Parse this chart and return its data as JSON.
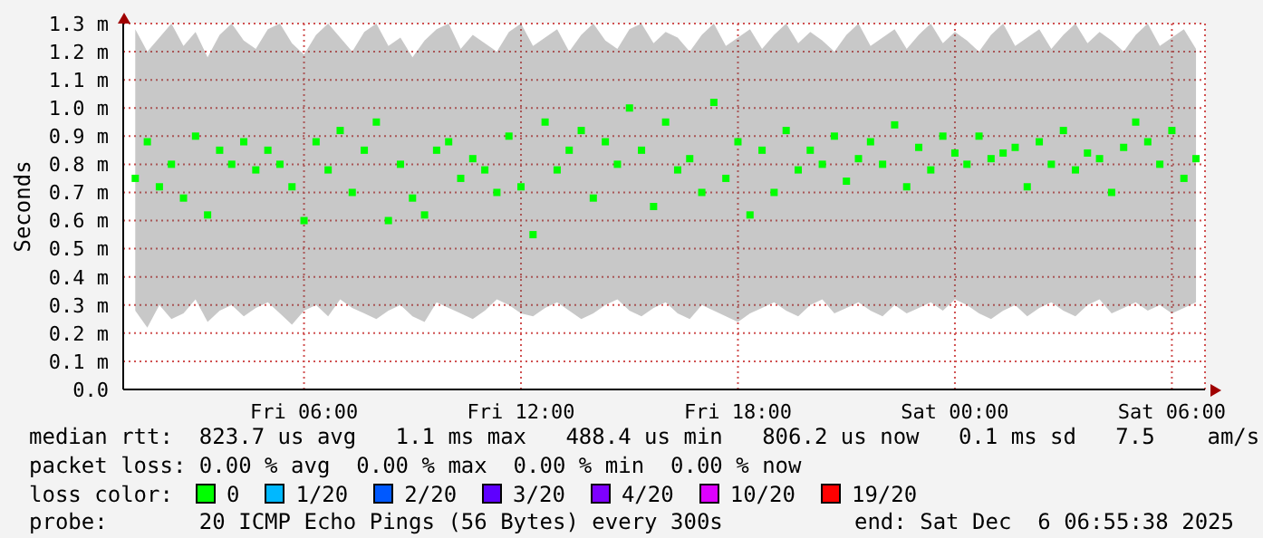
{
  "chart_data": {
    "type": "scatter",
    "ylabel": "Seconds",
    "xlim": [
      "2025-12-05T01:00",
      "2025-12-06T06:55"
    ],
    "xticks": [
      {
        "value": "2025-12-05T06:00",
        "label": "Fri 06:00"
      },
      {
        "value": "2025-12-05T12:00",
        "label": "Fri 12:00"
      },
      {
        "value": "2025-12-05T18:00",
        "label": "Fri 18:00"
      },
      {
        "value": "2025-12-06T00:00",
        "label": "Sat 00:00"
      },
      {
        "value": "2025-12-06T06:00",
        "label": "Sat 06:00"
      }
    ],
    "ylim": [
      0,
      1.3
    ],
    "yticks": [
      {
        "value": 0,
        "label": "0.0"
      },
      {
        "value": 0.1,
        "label": "0.1 m"
      },
      {
        "value": 0.2,
        "label": "0.2 m"
      },
      {
        "value": 0.3,
        "label": "0.3 m"
      },
      {
        "value": 0.4,
        "label": "0.4 m"
      },
      {
        "value": 0.5,
        "label": "0.5 m"
      },
      {
        "value": 0.6,
        "label": "0.6 m"
      },
      {
        "value": 0.7,
        "label": "0.7 m"
      },
      {
        "value": 0.8,
        "label": "0.8 m"
      },
      {
        "value": 0.9,
        "label": "0.9 m"
      },
      {
        "value": 1.0,
        "label": "1.0 m"
      },
      {
        "value": 1.1,
        "label": "1.1 m"
      },
      {
        "value": 1.2,
        "label": "1.2 m"
      },
      {
        "value": 1.3,
        "label": "1.3 m"
      }
    ],
    "grid": true,
    "marker": "square",
    "x": [
      "2025-12-05T01:20",
      "2025-12-05T01:40",
      "2025-12-05T02:00",
      "2025-12-05T02:20",
      "2025-12-05T02:40",
      "2025-12-05T03:00",
      "2025-12-05T03:20",
      "2025-12-05T03:40",
      "2025-12-05T04:00",
      "2025-12-05T04:20",
      "2025-12-05T04:40",
      "2025-12-05T05:00",
      "2025-12-05T05:20",
      "2025-12-05T05:40",
      "2025-12-05T06:00",
      "2025-12-05T06:20",
      "2025-12-05T06:40",
      "2025-12-05T07:00",
      "2025-12-05T07:20",
      "2025-12-05T07:40",
      "2025-12-05T08:00",
      "2025-12-05T08:20",
      "2025-12-05T08:40",
      "2025-12-05T09:00",
      "2025-12-05T09:20",
      "2025-12-05T09:40",
      "2025-12-05T10:00",
      "2025-12-05T10:20",
      "2025-12-05T10:40",
      "2025-12-05T11:00",
      "2025-12-05T11:20",
      "2025-12-05T11:40",
      "2025-12-05T12:00",
      "2025-12-05T12:20",
      "2025-12-05T12:40",
      "2025-12-05T13:00",
      "2025-12-05T13:20",
      "2025-12-05T13:40",
      "2025-12-05T14:00",
      "2025-12-05T14:20",
      "2025-12-05T14:40",
      "2025-12-05T15:00",
      "2025-12-05T15:20",
      "2025-12-05T15:40",
      "2025-12-05T16:00",
      "2025-12-05T16:20",
      "2025-12-05T16:40",
      "2025-12-05T17:00",
      "2025-12-05T17:20",
      "2025-12-05T17:40",
      "2025-12-05T18:00",
      "2025-12-05T18:20",
      "2025-12-05T18:40",
      "2025-12-05T19:00",
      "2025-12-05T19:20",
      "2025-12-05T19:40",
      "2025-12-05T20:00",
      "2025-12-05T20:20",
      "2025-12-05T20:40",
      "2025-12-05T21:00",
      "2025-12-05T21:20",
      "2025-12-05T21:40",
      "2025-12-05T22:00",
      "2025-12-05T22:20",
      "2025-12-05T22:40",
      "2025-12-05T23:00",
      "2025-12-05T23:20",
      "2025-12-05T23:40",
      "2025-12-06T00:00",
      "2025-12-06T00:20",
      "2025-12-06T00:40",
      "2025-12-06T01:00",
      "2025-12-06T01:20",
      "2025-12-06T01:40",
      "2025-12-06T02:00",
      "2025-12-06T02:20",
      "2025-12-06T02:40",
      "2025-12-06T03:00",
      "2025-12-06T03:20",
      "2025-12-06T03:40",
      "2025-12-06T04:00",
      "2025-12-06T04:20",
      "2025-12-06T04:40",
      "2025-12-06T05:00",
      "2025-12-06T05:20",
      "2025-12-06T05:40",
      "2025-12-06T06:00",
      "2025-12-06T06:20",
      "2025-12-06T06:40"
    ],
    "series": [
      {
        "color": "#00ff00",
        "values": [
          0.75,
          0.88,
          0.72,
          0.8,
          0.68,
          0.9,
          0.62,
          0.85,
          0.8,
          0.88,
          0.78,
          0.85,
          0.8,
          0.72,
          0.6,
          0.88,
          0.78,
          0.92,
          0.7,
          0.85,
          0.95,
          0.6,
          0.8,
          0.68,
          0.62,
          0.85,
          0.88,
          0.75,
          0.82,
          0.78,
          0.7,
          0.9,
          0.72,
          0.55,
          0.95,
          0.78,
          0.85,
          0.92,
          0.68,
          0.88,
          0.8,
          1.0,
          0.85,
          0.65,
          0.95,
          0.78,
          0.82,
          0.7,
          1.02,
          0.75,
          0.88,
          0.62,
          0.85,
          0.7,
          0.92,
          0.78,
          0.85,
          0.8,
          0.9,
          0.74,
          0.82,
          0.88,
          0.8,
          0.94,
          0.72,
          0.86,
          0.78,
          0.9,
          0.84,
          0.8,
          0.9,
          0.82,
          0.84,
          0.86,
          0.72,
          0.88,
          0.8,
          0.92,
          0.78,
          0.84,
          0.82,
          0.7,
          0.86,
          0.95,
          0.88,
          0.8,
          0.92,
          0.75,
          0.82
        ],
        "lower": [
          0.28,
          0.22,
          0.3,
          0.25,
          0.27,
          0.32,
          0.24,
          0.28,
          0.3,
          0.26,
          0.29,
          0.31,
          0.27,
          0.23,
          0.28,
          0.3,
          0.26,
          0.32,
          0.29,
          0.27,
          0.25,
          0.28,
          0.3,
          0.26,
          0.24,
          0.31,
          0.29,
          0.27,
          0.25,
          0.28,
          0.32,
          0.3,
          0.27,
          0.26,
          0.29,
          0.31,
          0.28,
          0.25,
          0.27,
          0.3,
          0.32,
          0.28,
          0.26,
          0.29,
          0.31,
          0.27,
          0.25,
          0.3,
          0.28,
          0.26,
          0.24,
          0.27,
          0.29,
          0.31,
          0.28,
          0.26,
          0.3,
          0.32,
          0.27,
          0.29,
          0.31,
          0.28,
          0.26,
          0.3,
          0.27,
          0.29,
          0.31,
          0.28,
          0.32,
          0.3,
          0.27,
          0.25,
          0.28,
          0.3,
          0.26,
          0.29,
          0.31,
          0.28,
          0.26,
          0.3,
          0.32,
          0.27,
          0.29,
          0.31,
          0.28,
          0.3,
          0.27,
          0.29,
          0.31
        ],
        "upper": [
          1.28,
          1.2,
          1.25,
          1.3,
          1.22,
          1.27,
          1.18,
          1.26,
          1.3,
          1.24,
          1.21,
          1.28,
          1.3,
          1.23,
          1.19,
          1.26,
          1.3,
          1.25,
          1.2,
          1.27,
          1.3,
          1.22,
          1.25,
          1.18,
          1.24,
          1.28,
          1.3,
          1.21,
          1.26,
          1.23,
          1.2,
          1.27,
          1.3,
          1.22,
          1.25,
          1.28,
          1.2,
          1.26,
          1.3,
          1.24,
          1.21,
          1.28,
          1.3,
          1.23,
          1.27,
          1.25,
          1.2,
          1.26,
          1.3,
          1.22,
          1.25,
          1.28,
          1.21,
          1.26,
          1.3,
          1.23,
          1.27,
          1.24,
          1.2,
          1.26,
          1.3,
          1.22,
          1.25,
          1.28,
          1.21,
          1.26,
          1.3,
          1.23,
          1.27,
          1.24,
          1.2,
          1.26,
          1.3,
          1.22,
          1.25,
          1.28,
          1.21,
          1.26,
          1.3,
          1.23,
          1.27,
          1.24,
          1.2,
          1.26,
          1.3,
          1.22,
          1.25,
          1.28,
          1.21
        ]
      }
    ],
    "annotations": [
      "median rtt:  823.7 us avg   1.1 ms max   488.4 us min   806.2 us now   0.1 ms sd   7.5    am/s",
      "packet loss: 0.00 % avg  0.00 % max  0.00 % min  0.00 % now",
      "loss color:",
      "0",
      "1/20",
      "2/20",
      "3/20",
      "4/20",
      "10/20",
      "19/20",
      "probe:       20 ICMP Echo Pings (56 Bytes) every 300s",
      "end: Sat Dec  6 06:55:38 2025"
    ]
  }
}
